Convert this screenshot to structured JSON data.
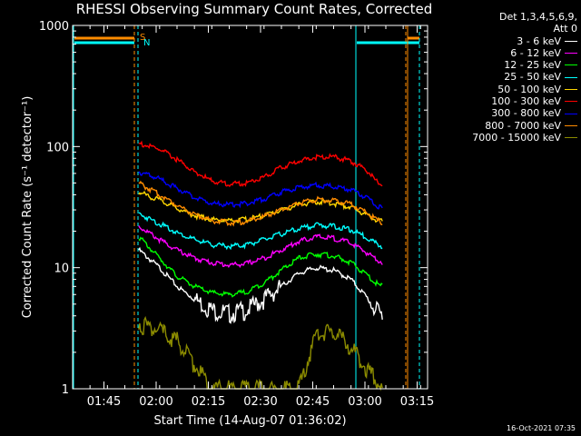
{
  "title": "RHESSI Observing Summary Count Rates, Corrected",
  "timestamp": "16-Oct-2021 07:35",
  "legend": {
    "header_line1": "Det 1,3,4,5,6,9,",
    "header_line2": "Att 0"
  },
  "flags": [
    {
      "label": "S",
      "color": "#ff8c00"
    },
    {
      "label": "N",
      "color": "#00ffff"
    }
  ],
  "chart_data": {
    "type": "line",
    "title": "RHESSI Observing Summary Count Rates, Corrected",
    "xlabel": "Start Time (14-Aug-07 01:36:02)",
    "ylabel": "Corrected Count Rate (s⁻¹ detector⁻¹)",
    "yscale": "log",
    "ylim": [
      1,
      1000
    ],
    "xlim_minutes": [
      0,
      102
    ],
    "x_ticks": [
      "01:45",
      "02:00",
      "02:15",
      "02:30",
      "02:45",
      "03:00",
      "03:15"
    ],
    "y_ticks": [
      "1",
      "10",
      "100",
      "1000"
    ],
    "x_tick_minutes": [
      9,
      24,
      39,
      54,
      69,
      84,
      99
    ],
    "x_minutes": [
      19,
      25,
      30,
      35,
      40,
      45,
      50,
      55,
      60,
      65,
      70,
      75,
      80,
      85,
      87,
      89
    ],
    "series": [
      {
        "name": "3 - 6 keV",
        "color": "#ffffff",
        "values": [
          14,
          10,
          7,
          5.5,
          4.5,
          4.2,
          4.5,
          5.5,
          7,
          9,
          10,
          9.5,
          8,
          5.5,
          4.5,
          4
        ]
      },
      {
        "name": "6 - 12 keV",
        "color": "#ff00ff",
        "values": [
          22,
          17,
          14,
          12,
          11,
          10.5,
          10.8,
          12,
          14,
          16.5,
          18,
          17.5,
          16,
          13,
          12,
          11
        ]
      },
      {
        "name": "12 - 25 keV",
        "color": "#00ff00",
        "values": [
          18,
          12,
          8.5,
          7,
          6.2,
          6,
          6.3,
          7.5,
          9.5,
          12,
          13,
          12.5,
          11,
          8.5,
          7.5,
          7
        ]
      },
      {
        "name": "25 - 50 keV",
        "color": "#00ffff",
        "values": [
          28,
          23,
          19.5,
          17,
          15.5,
          15,
          15.5,
          17,
          19,
          21,
          22.5,
          22,
          20.5,
          17.5,
          16,
          15
        ]
      },
      {
        "name": "50 - 100 keV",
        "color": "#ffd700",
        "values": [
          42,
          36,
          31,
          27,
          25,
          24.5,
          25,
          27,
          30,
          33,
          35,
          34,
          31.5,
          27,
          25,
          24
        ]
      },
      {
        "name": "100 - 300 keV",
        "color": "#ff0000",
        "values": [
          106,
          95,
          78,
          62,
          52,
          49,
          50,
          56,
          67,
          76,
          82,
          82,
          76,
          62,
          52,
          48
        ]
      },
      {
        "name": "300 - 800 keV",
        "color": "#0000ff",
        "values": [
          62,
          54,
          45,
          38,
          34,
          33,
          34,
          37,
          42,
          46,
          48,
          47,
          44,
          37,
          33,
          31
        ]
      },
      {
        "name": "800 - 7000 keV",
        "color": "#ff8c00",
        "values": [
          50,
          40,
          33,
          27.5,
          24.5,
          23.5,
          24,
          26.5,
          30,
          34,
          36.5,
          36,
          33.5,
          28,
          25,
          23.5
        ]
      },
      {
        "name": "7000 - 15000 keV",
        "color": "#8b8b00",
        "values": [
          3.5,
          3,
          2.5,
          1.6,
          1,
          1,
          1,
          1,
          1,
          1,
          2.8,
          3,
          2.2,
          1.4,
          1.2,
          1
        ]
      }
    ]
  }
}
